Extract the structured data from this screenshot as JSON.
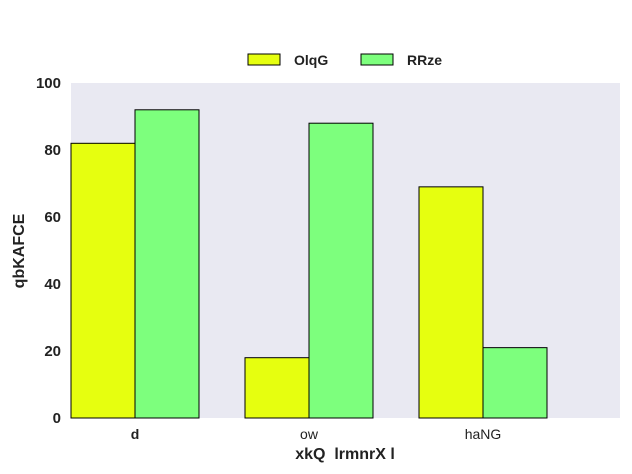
{
  "chart_data": {
    "type": "bar",
    "categories": [
      "d",
      "ow",
      "haNG"
    ],
    "category_bold": [
      true,
      false,
      false
    ],
    "series": [
      {
        "name": "OlqG",
        "values": [
          82,
          18,
          69
        ],
        "color": "#e6ff0f"
      },
      {
        "name": "RRze",
        "values": [
          92,
          88,
          21
        ],
        "color": "#7dff7d"
      }
    ],
    "xlabel": "xkQ  lrmnrX l",
    "ylabel": "qbKAFCE",
    "ylim": [
      0,
      100
    ],
    "yticks": [
      0,
      20,
      40,
      60,
      80,
      100
    ],
    "grid": false,
    "legend_position": "top-center",
    "plot_background": "#e9e9f2",
    "bar_edge_color": "#000000"
  }
}
